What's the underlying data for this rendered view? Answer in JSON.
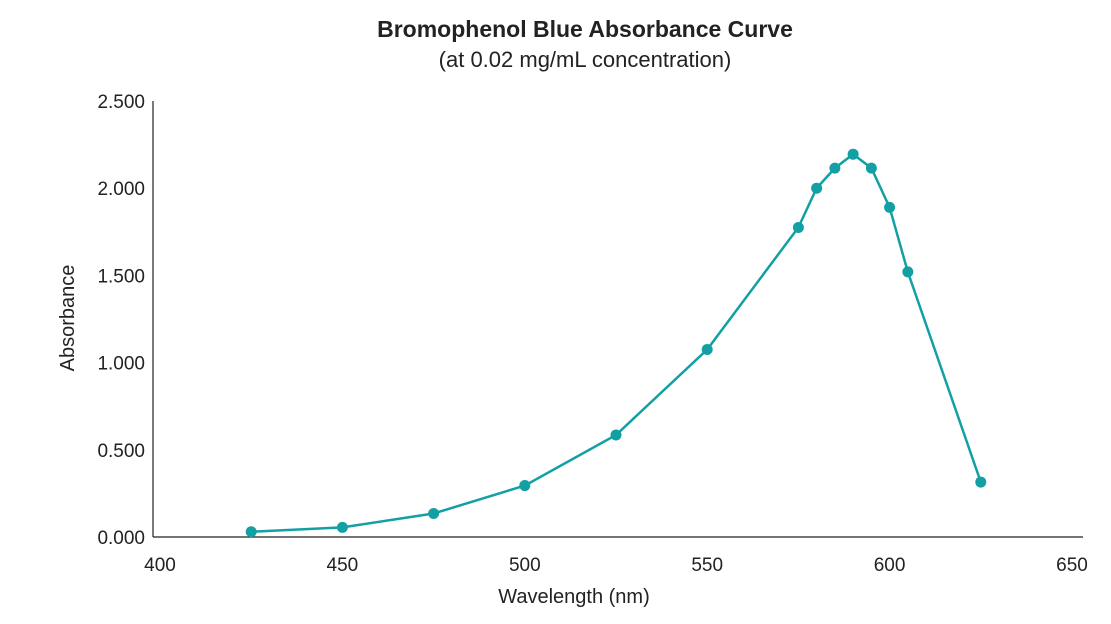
{
  "chart_data": {
    "type": "line",
    "title": "Bromophenol Blue Absorbance Curve",
    "subtitle": "(at 0.02 mg/mL concentration)",
    "xlabel": "Wavelength  (nm)",
    "ylabel": "Absorbance",
    "xlim": [
      400,
      650
    ],
    "ylim": [
      0,
      2.5
    ],
    "x_ticks": [
      "400",
      "450",
      "500",
      "550",
      "600",
      "650"
    ],
    "x_tick_values": [
      400,
      450,
      500,
      550,
      600,
      650
    ],
    "y_ticks": [
      "0.000",
      "0.500",
      "1.000",
      "1.500",
      "2.000",
      "2.500"
    ],
    "y_tick_values": [
      0,
      0.5,
      1.0,
      1.5,
      2.0,
      2.5
    ],
    "grid": false,
    "color": "#13a0a4",
    "series": [
      {
        "x": [
          425,
          450,
          475,
          500,
          525,
          550,
          575,
          580,
          585,
          590,
          595,
          600,
          605,
          625
        ],
        "y": [
          0.03,
          0.055,
          0.135,
          0.295,
          0.585,
          1.075,
          1.775,
          2.0,
          2.115,
          2.195,
          2.115,
          1.89,
          1.52,
          0.315
        ]
      }
    ]
  }
}
